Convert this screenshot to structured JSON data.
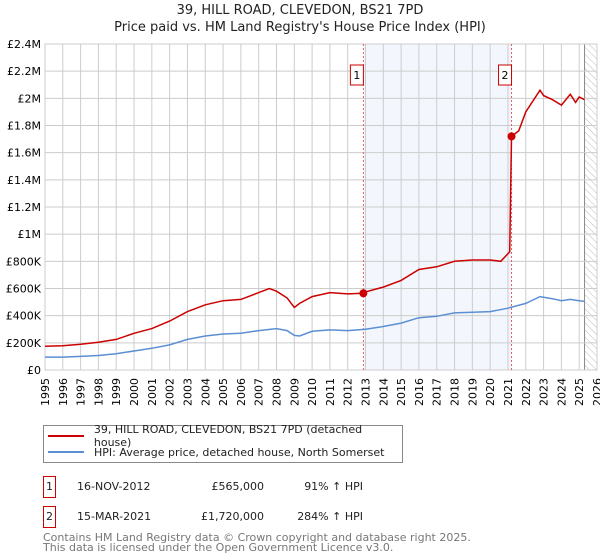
{
  "chart_data": {
    "type": "line",
    "title": "39, HILL ROAD, CLEVEDON, BS21 7PD",
    "subtitle": "Price paid vs. HM Land Registry's House Price Index (HPI)",
    "xlim": [
      1995,
      2026
    ],
    "ylim": [
      0,
      2400000
    ],
    "x_ticks": [
      "1995",
      "1996",
      "1997",
      "1998",
      "1999",
      "2000",
      "2001",
      "2002",
      "2003",
      "2004",
      "2005",
      "2006",
      "2007",
      "2008",
      "2009",
      "2010",
      "2011",
      "2012",
      "2013",
      "2014",
      "2015",
      "2016",
      "2017",
      "2018",
      "2019",
      "2020",
      "2021",
      "2022",
      "2023",
      "2024",
      "2025",
      "2026"
    ],
    "y_ticks": [
      {
        "v": 0,
        "label": "£0"
      },
      {
        "v": 200000,
        "label": "£200K"
      },
      {
        "v": 400000,
        "label": "£400K"
      },
      {
        "v": 600000,
        "label": "£600K"
      },
      {
        "v": 800000,
        "label": "£800K"
      },
      {
        "v": 1000000,
        "label": "£1M"
      },
      {
        "v": 1200000,
        "label": "£1.2M"
      },
      {
        "v": 1400000,
        "label": "£1.4M"
      },
      {
        "v": 1600000,
        "label": "£1.6M"
      },
      {
        "v": 1800000,
        "label": "£1.8M"
      },
      {
        "v": 2000000,
        "label": "£2M"
      },
      {
        "v": 2200000,
        "label": "£2.2M"
      },
      {
        "v": 2400000,
        "label": "£2.4M"
      }
    ],
    "grid": true,
    "shaded_range": [
      2012.88,
      2021.2
    ],
    "forecast_hatch_from": 2025.3,
    "series": [
      {
        "name": "39, HILL ROAD, CLEVEDON, BS21 7PD (detached house)",
        "color": "#cc0000",
        "x": [
          1995,
          1996,
          1997,
          1998,
          1999,
          2000,
          2001,
          2002,
          2003,
          2004,
          2005,
          2006,
          2007,
          2007.6,
          2008,
          2008.6,
          2009,
          2009.3,
          2010,
          2011,
          2012,
          2012.88,
          2013,
          2014,
          2015,
          2016,
          2017,
          2018,
          2019,
          2020,
          2020.6,
          2021.1,
          2021.2,
          2021.6,
          2022,
          2022.8,
          2023,
          2023.5,
          2024,
          2024.5,
          2024.8,
          2025,
          2025.3
        ],
        "y": [
          175000,
          178000,
          190000,
          205000,
          225000,
          270000,
          305000,
          360000,
          430000,
          480000,
          510000,
          520000,
          570000,
          600000,
          580000,
          530000,
          460000,
          490000,
          540000,
          570000,
          560000,
          565000,
          575000,
          610000,
          660000,
          740000,
          760000,
          800000,
          810000,
          810000,
          800000,
          870000,
          1720000,
          1760000,
          1900000,
          2060000,
          2020000,
          1990000,
          1950000,
          2030000,
          1970000,
          2010000,
          1990000
        ]
      },
      {
        "name": "HPI: Average price, detached house, North Somerset",
        "color": "#5b8fd4",
        "x": [
          1995,
          1996,
          1997,
          1998,
          1999,
          2000,
          2001,
          2002,
          2003,
          2004,
          2005,
          2006,
          2007,
          2008,
          2008.6,
          2009,
          2009.3,
          2010,
          2011,
          2012,
          2013,
          2014,
          2015,
          2016,
          2017,
          2018,
          2019,
          2020,
          2021,
          2022,
          2022.8,
          2023.5,
          2024,
          2024.5,
          2025,
          2025.3
        ],
        "y": [
          95000,
          95000,
          100000,
          107000,
          120000,
          140000,
          160000,
          185000,
          225000,
          250000,
          265000,
          270000,
          290000,
          305000,
          290000,
          255000,
          250000,
          285000,
          295000,
          290000,
          300000,
          320000,
          345000,
          385000,
          395000,
          420000,
          425000,
          430000,
          455000,
          490000,
          540000,
          525000,
          510000,
          520000,
          510000,
          505000
        ]
      }
    ],
    "sales": [
      {
        "label": "1",
        "x": 2012.88,
        "y": 565000
      },
      {
        "label": "2",
        "x": 2021.2,
        "y": 1720000
      }
    ]
  },
  "title": "39, HILL ROAD, CLEVEDON, BS21 7PD",
  "subtitle": "Price paid vs. HM Land Registry's House Price Index (HPI)",
  "legend": [
    "39, HILL ROAD, CLEVEDON, BS21 7PD (detached house)",
    "HPI: Average price, detached house, North Somerset"
  ],
  "colors": {
    "red": "#cc0000",
    "blue": "#5b8fd4"
  },
  "transactions": [
    {
      "num": "1",
      "date": "16-NOV-2012",
      "price": "£565,000",
      "hpi": "91% ↑ HPI"
    },
    {
      "num": "2",
      "date": "15-MAR-2021",
      "price": "£1,720,000",
      "hpi": "284% ↑ HPI"
    }
  ],
  "footer": [
    "Contains HM Land Registry data © Crown copyright and database right 2025.",
    "This data is licensed under the Open Government Licence v3.0."
  ]
}
